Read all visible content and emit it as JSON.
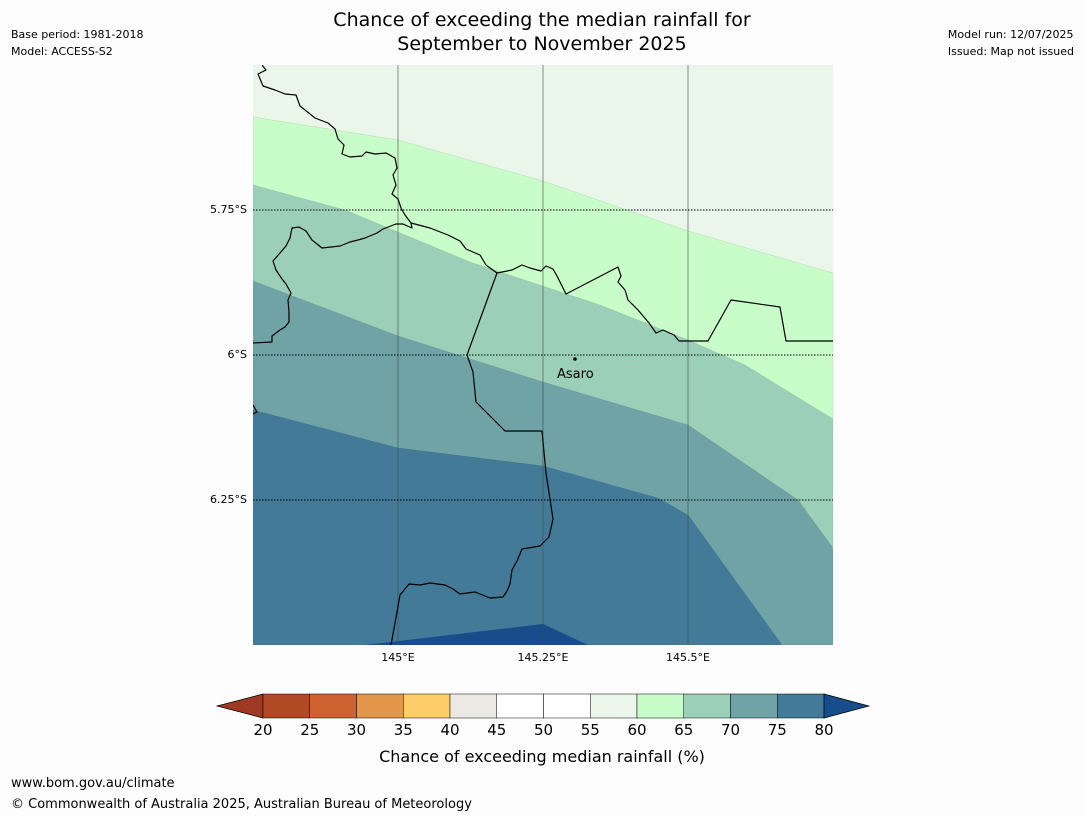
{
  "title_line1": "Chance of exceeding the median rainfall for",
  "title_line2": "September to November 2025",
  "meta_left": {
    "base_period": "Base period: 1981-2018",
    "model": "Model: ACCESS-S2"
  },
  "meta_right": {
    "model_run": "Model run: 12/07/2025",
    "issued": "Issued: Map not issued"
  },
  "map": {
    "lat_ticks": [
      "5.75°S",
      "6°S",
      "6.25°S"
    ],
    "lon_ticks": [
      "145°E",
      "145.25°E",
      "145.5°E"
    ],
    "place_label": "Asaro",
    "place_marker_icon": "dot"
  },
  "colorbar": {
    "title": "Chance of exceeding median rainfall (%)",
    "ticks": [
      "20",
      "25",
      "30",
      "35",
      "40",
      "45",
      "50",
      "55",
      "60",
      "65",
      "70",
      "75",
      "80"
    ],
    "bins": [
      {
        "range": "20-25",
        "color": "#b04a25"
      },
      {
        "range": "25-30",
        "color": "#cd6230"
      },
      {
        "range": "30-35",
        "color": "#e3964a"
      },
      {
        "range": "35-40",
        "color": "#fdcd6a"
      },
      {
        "range": "40-45",
        "color": "#ece9e4"
      },
      {
        "range": "45-50",
        "color": "#ffffff"
      },
      {
        "range": "50-55",
        "color": "#ffffff"
      },
      {
        "range": "55-60",
        "color": "#e9f6e9"
      },
      {
        "range": "60-65",
        "color": "#c8fcc8"
      },
      {
        "range": "65-70",
        "color": "#9ccfb8"
      },
      {
        "range": "70-75",
        "color": "#6fa3a6"
      },
      {
        "range": "75-80",
        "color": "#427a98"
      }
    ],
    "under_color": "#9e3a24",
    "over_color": "#174d8a"
  },
  "footer": {
    "website": "www.bom.gov.au/climate",
    "copyright": "© Commonwealth of Australia 2025, Australian Bureau of Meteorology"
  }
}
